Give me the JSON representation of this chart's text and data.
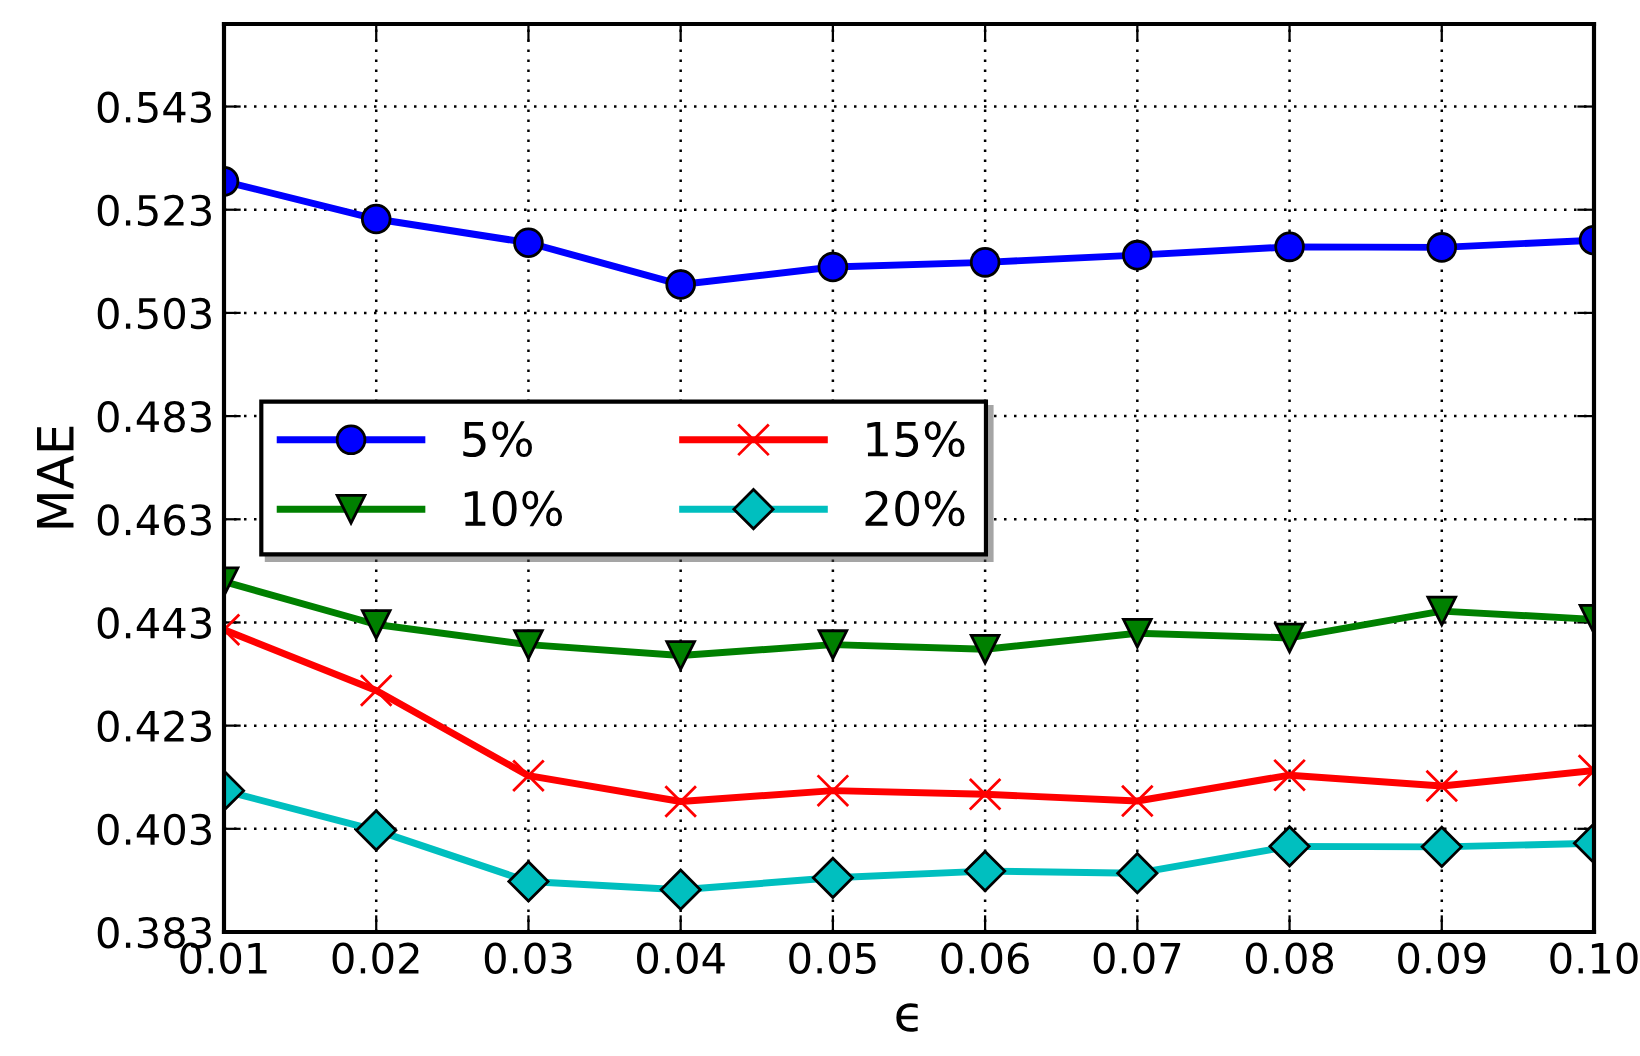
{
  "chart_data": {
    "type": "line",
    "xlabel": "ϵ",
    "ylabel": "MAE",
    "x": [
      0.01,
      0.02,
      0.03,
      0.04,
      0.05,
      0.06,
      0.07,
      0.08,
      0.09,
      0.1
    ],
    "series": [
      {
        "name": "5%",
        "color": "#0000ff",
        "marker": "circle",
        "values": [
          0.5285,
          0.5212,
          0.5166,
          0.5085,
          0.5119,
          0.5128,
          0.5142,
          0.5158,
          0.5157,
          0.5171
        ]
      },
      {
        "name": "10%",
        "color": "#008000",
        "marker": "triangle",
        "values": [
          0.4509,
          0.4426,
          0.4387,
          0.4366,
          0.4387,
          0.4378,
          0.4409,
          0.44,
          0.4452,
          0.4436
        ]
      },
      {
        "name": "15%",
        "color": "#ff0000",
        "marker": "cross",
        "values": [
          0.4416,
          0.4298,
          0.4133,
          0.4083,
          0.4104,
          0.4097,
          0.4084,
          0.4134,
          0.4113,
          0.4143
        ]
      },
      {
        "name": "20%",
        "color": "#00bfbf",
        "marker": "diamond",
        "values": [
          0.4104,
          0.4027,
          0.3928,
          0.3912,
          0.3935,
          0.3948,
          0.3944,
          0.3996,
          0.3995,
          0.4002
        ]
      }
    ],
    "xlim": [
      0.01,
      0.1
    ],
    "xticks": [
      {
        "value": 0.01,
        "label": "0.01"
      },
      {
        "value": 0.02,
        "label": "0.02"
      },
      {
        "value": 0.03,
        "label": "0.03"
      },
      {
        "value": 0.04,
        "label": "0.04"
      },
      {
        "value": 0.05,
        "label": "0.05"
      },
      {
        "value": 0.06,
        "label": "0.06"
      },
      {
        "value": 0.07,
        "label": "0.07"
      },
      {
        "value": 0.08,
        "label": "0.08"
      },
      {
        "value": 0.09,
        "label": "0.09"
      },
      {
        "value": 0.1,
        "label": "0.10"
      }
    ],
    "ylim": [
      0.383,
      0.559
    ],
    "yticks": [
      0.383,
      0.403,
      0.423,
      0.443,
      0.463,
      0.483,
      0.503,
      0.523,
      0.543
    ],
    "grid": true,
    "legend": "center left",
    "line_style": "solid"
  }
}
